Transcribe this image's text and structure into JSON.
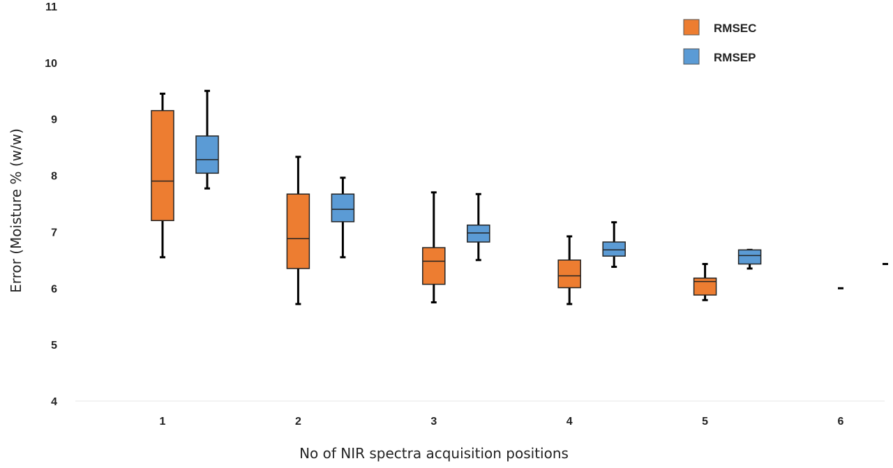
{
  "chart_data": {
    "type": "box",
    "xlabel": "No of NIR spectra acquisition positions",
    "ylabel": "Error (Moisture % (w/w)",
    "ylim": [
      4,
      11
    ],
    "yticks": [
      4,
      5,
      6,
      7,
      8,
      9,
      10,
      11
    ],
    "categories": [
      "1",
      "2",
      "3",
      "4",
      "5",
      "6"
    ],
    "grid": false,
    "legend_position": "top-right",
    "series": [
      {
        "name": "RMSEC",
        "color": "#ED7D31",
        "boxes": [
          {
            "min": 6.55,
            "q1": 7.2,
            "median": 7.9,
            "q3": 9.15,
            "max": 9.45
          },
          {
            "min": 5.72,
            "q1": 6.35,
            "median": 6.88,
            "q3": 7.67,
            "max": 8.33
          },
          {
            "min": 5.75,
            "q1": 6.07,
            "median": 6.48,
            "q3": 6.72,
            "max": 7.7
          },
          {
            "min": 5.72,
            "q1": 6.01,
            "median": 6.22,
            "q3": 6.5,
            "max": 6.92
          },
          {
            "min": 5.79,
            "q1": 5.88,
            "median": 6.12,
            "q3": 6.18,
            "max": 6.43
          },
          {
            "min": 6.0,
            "q1": 6.0,
            "median": 6.0,
            "q3": 6.0,
            "max": 6.0
          }
        ]
      },
      {
        "name": "RMSEP",
        "color": "#5B9BD5",
        "boxes": [
          {
            "min": 7.77,
            "q1": 8.04,
            "median": 8.28,
            "q3": 8.7,
            "max": 9.5
          },
          {
            "min": 6.55,
            "q1": 7.18,
            "median": 7.4,
            "q3": 7.67,
            "max": 7.96
          },
          {
            "min": 6.5,
            "q1": 6.82,
            "median": 6.98,
            "q3": 7.12,
            "max": 7.67
          },
          {
            "min": 6.38,
            "q1": 6.57,
            "median": 6.68,
            "q3": 6.82,
            "max": 7.17
          },
          {
            "min": 6.35,
            "q1": 6.43,
            "median": 6.58,
            "q3": 6.68,
            "max": 6.68
          },
          {
            "min": 6.43,
            "q1": 6.43,
            "median": 6.43,
            "q3": 6.43,
            "max": 6.43
          }
        ]
      }
    ]
  }
}
